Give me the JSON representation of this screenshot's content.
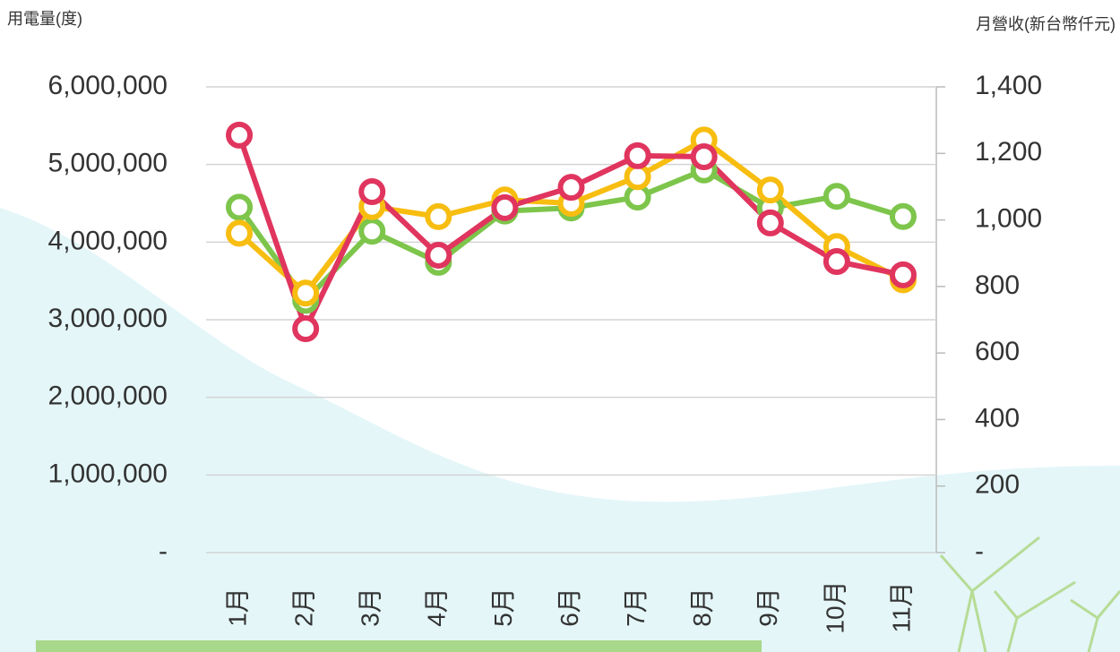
{
  "chart_data": {
    "type": "line",
    "y_title": "用電量(度)",
    "y2_title": "月營收(新台幣仟元)",
    "categories": [
      "1月",
      "2月",
      "3月",
      "4月",
      "5月",
      "6月",
      "7月",
      "8月",
      "9月",
      "10月",
      "11月"
    ],
    "series": [
      {
        "color": "#7dc54b",
        "values": [
          4450000,
          3250000,
          4140000,
          3740000,
          4400000,
          4440000,
          4580000,
          4930000,
          4440000,
          4590000,
          4330000
        ]
      },
      {
        "color": "#f7bd10",
        "axis": "y2",
        "values": [
          960,
          780,
          1040,
          1010,
          1060,
          1050,
          1130,
          1240,
          1090,
          920,
          820
        ]
      },
      {
        "color": "#e0355e",
        "axis": "y2",
        "values": [
          1255,
          673,
          1085,
          894,
          1037,
          1098,
          1193,
          1190,
          991,
          875,
          835
        ]
      }
    ],
    "ylim": [
      0,
      6000000
    ],
    "yticks": [
      {
        "value": 0,
        "label": "-"
      },
      {
        "value": 1000000,
        "label": "1,000,000"
      },
      {
        "value": 2000000,
        "label": "2,000,000"
      },
      {
        "value": 3000000,
        "label": "3,000,000"
      },
      {
        "value": 4000000,
        "label": "4,000,000"
      },
      {
        "value": 5000000,
        "label": "5,000,000"
      },
      {
        "value": 6000000,
        "label": "6,000,000"
      }
    ],
    "y2lim": [
      0,
      1400
    ],
    "y2ticks": [
      {
        "value": 0,
        "label": "-"
      },
      200,
      400,
      600,
      800,
      {
        "value": 1000,
        "label": "1,000"
      },
      {
        "value": 1200,
        "label": "1,200"
      },
      {
        "value": 1400,
        "label": "1,400"
      }
    ],
    "grid": true
  }
}
